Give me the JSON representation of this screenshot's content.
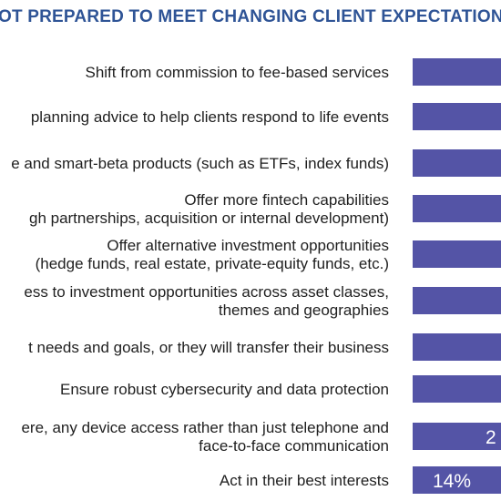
{
  "title": "OT PREPARED TO MEET CHANGING CLIENT EXPECTATIONS",
  "colors": {
    "title": "#2f5496",
    "bar": "#5454a6",
    "label": "#1f1f1f",
    "value_text": "#ffffff"
  },
  "chart_data": {
    "type": "bar",
    "orientation": "horizontal",
    "title": "OT PREPARED TO MEET CHANGING CLIENT EXPECTATIONS",
    "categories": [
      [
        "Shift from commission to fee-based services"
      ],
      [
        "planning advice to help clients respond to life events"
      ],
      [
        "e and smart-beta products (such as ETFs, index funds)"
      ],
      [
        "Offer more fintech capabilities",
        "gh partnerships, acquisition or internal development)"
      ],
      [
        "Offer alternative investment opportunities",
        "(hedge funds, real estate, private-equity funds, etc.)"
      ],
      [
        "ess to investment opportunities across asset classes,",
        "themes and geographies"
      ],
      [
        "t needs and goals, or they will transfer their business"
      ],
      [
        "Ensure robust cybersecurity and data protection"
      ],
      [
        "ere, any device access rather than just telephone and",
        "face-to-face communication"
      ],
      [
        "Act in their best interests"
      ]
    ],
    "value_labels": [
      "",
      "",
      "",
      "",
      "",
      "",
      "",
      "",
      "2",
      "14%"
    ],
    "xlabel": "",
    "ylabel": "",
    "grid": false,
    "legend": "none"
  }
}
